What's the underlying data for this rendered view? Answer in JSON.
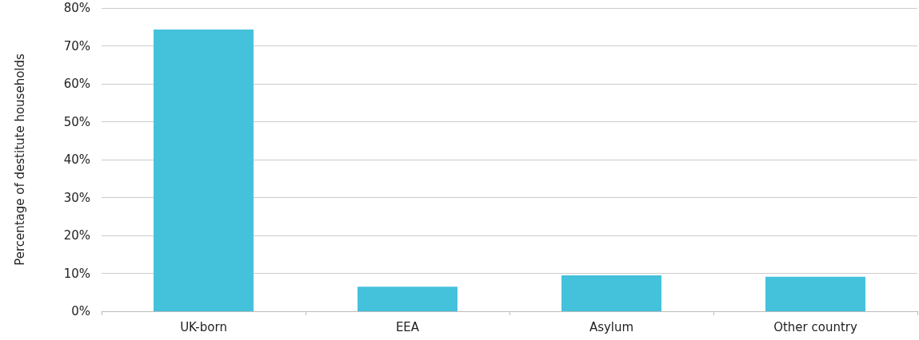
{
  "chart_data": {
    "type": "bar",
    "ylabel": "Percentage of destitute households",
    "categories": [
      "UK-born",
      "EEA",
      "Asylum",
      "Other country"
    ],
    "values": [
      74.3,
      6.5,
      9.5,
      9.1
    ],
    "color": "#44c1db",
    "ylim": [
      0,
      80
    ],
    "yticks": [
      {
        "value": 0,
        "label": "0%"
      },
      {
        "value": 10,
        "label": "10%"
      },
      {
        "value": 20,
        "label": "20%"
      },
      {
        "value": 30,
        "label": "30%"
      },
      {
        "value": 40,
        "label": "40%"
      },
      {
        "value": 50,
        "label": "50%"
      },
      {
        "value": 60,
        "label": "60%"
      },
      {
        "value": 70,
        "label": "70%"
      },
      {
        "value": 80,
        "label": "80%"
      }
    ],
    "grid": "y"
  }
}
